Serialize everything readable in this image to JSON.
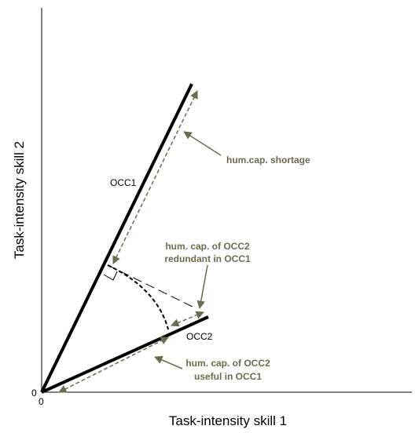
{
  "axes": {
    "x_label": "Task-intensity skill 1",
    "y_label": "Task-intensity skill 2",
    "x_origin_label": "0",
    "y_origin_label": "0"
  },
  "vectors": {
    "occ1_label": "OCC1",
    "occ2_label": "OCC2"
  },
  "annotations": {
    "shortage": "hum.cap. shortage",
    "redundant_line1": "hum. cap. of OCC2",
    "redundant_line2": "redundant in OCC1",
    "useful_line1": "hum. cap. of OCC2",
    "useful_line2": "useful in OCC1"
  },
  "colors": {
    "vector": "#000000",
    "annotation": "#6b6b4f"
  }
}
